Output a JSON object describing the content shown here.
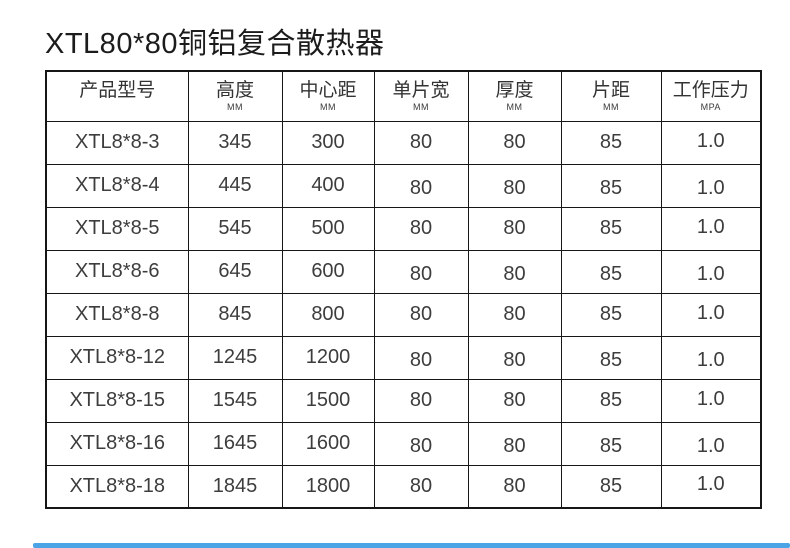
{
  "page": {
    "title": "XTL80*80铜铝复合散热器",
    "background_color": "#ffffff",
    "border_color": "#161616",
    "scrollbar_color": "#4ba4e5"
  },
  "table": {
    "columns": [
      {
        "label": "产品型号",
        "unit": ""
      },
      {
        "label": "高度",
        "unit": "MM"
      },
      {
        "label": "中心距",
        "unit": "MM"
      },
      {
        "label": "单片宽",
        "unit": "MM"
      },
      {
        "label": "厚度",
        "unit": "MM"
      },
      {
        "label": "片距",
        "unit": "MM"
      },
      {
        "label": "工作压力",
        "unit": "MPA"
      }
    ],
    "rows": [
      [
        "XTL8*8-3",
        "345",
        "300",
        "80",
        "80",
        "85",
        "1.0"
      ],
      [
        "XTL8*8-4",
        "445",
        "400",
        "80",
        "80",
        "85",
        "1.0"
      ],
      [
        "XTL8*8-5",
        "545",
        "500",
        "80",
        "80",
        "85",
        "1.0"
      ],
      [
        "XTL8*8-6",
        "645",
        "600",
        "80",
        "80",
        "85",
        "1.0"
      ],
      [
        "XTL8*8-8",
        "845",
        "800",
        "80",
        "80",
        "85",
        "1.0"
      ],
      [
        "XTL8*8-12",
        "1245",
        "1200",
        "80",
        "80",
        "85",
        "1.0"
      ],
      [
        "XTL8*8-15",
        "1545",
        "1500",
        "80",
        "80",
        "85",
        "1.0"
      ],
      [
        "XTL8*8-16",
        "1645",
        "1600",
        "80",
        "80",
        "85",
        "1.0"
      ],
      [
        "XTL8*8-18",
        "1845",
        "1800",
        "80",
        "80",
        "85",
        "1.0"
      ]
    ]
  }
}
